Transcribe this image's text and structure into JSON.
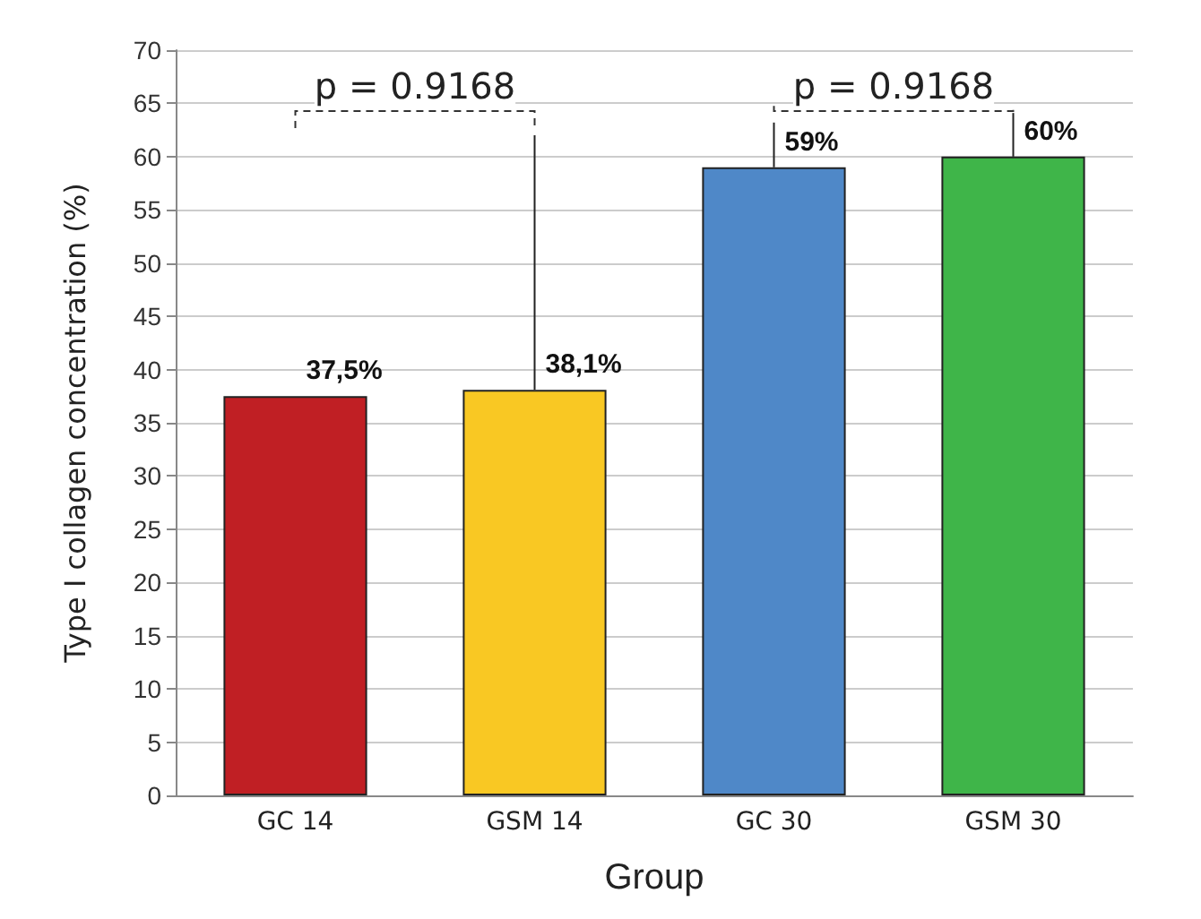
{
  "chart_data": {
    "type": "bar",
    "xlabel": "Group",
    "ylabel": "Type I collagen concentration (%)",
    "categories": [
      "GC 14",
      "GSM 14",
      "GC 30",
      "GSM 30"
    ],
    "values": [
      37.5,
      38.1,
      59,
      60
    ],
    "colors": [
      "#c01f24",
      "#f9c823",
      "#4f88c8",
      "#3fb549"
    ],
    "value_labels": [
      "37,5%",
      "38,1%",
      "59%",
      "60%"
    ],
    "errors": [
      null,
      [
        38.1,
        62
      ],
      [
        59,
        63.2
      ],
      [
        60,
        64.1
      ]
    ],
    "annotations": [
      "p = 0.9168",
      "p = 0.9168"
    ],
    "ylim": [
      0,
      70
    ],
    "yticks": [
      0,
      5,
      10,
      15,
      20,
      25,
      30,
      35,
      40,
      45,
      50,
      55,
      60,
      65,
      70
    ],
    "grid": "y"
  }
}
